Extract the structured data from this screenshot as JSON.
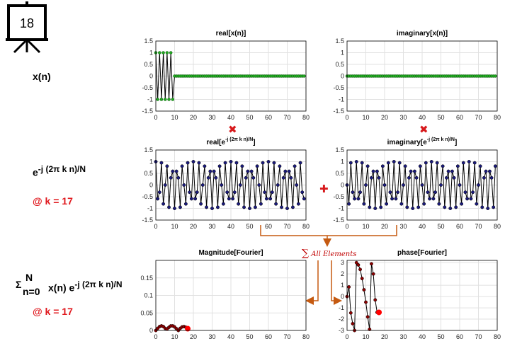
{
  "slide_number": "18",
  "row_labels": {
    "xn": "x(n)",
    "kernel_base": "e",
    "kernel_exp": "-j (2π k n)/N",
    "kernel_k": "@ k = 17",
    "sum_sigma": "Σ",
    "sum_top": "N",
    "sum_bottom": "n=0",
    "sum_expr": "x(n) e",
    "sum_exp": "-j (2π k n)/N",
    "sum_k": "@ k = 17"
  },
  "operators": {
    "multiply_glyph": "✖",
    "plus_glyph": "✚",
    "all_elements_sigma": "∑",
    "all_elements_text": "All Elements"
  },
  "colors": {
    "green_marker": "#22aa22",
    "blue_marker": "#1a1a7a",
    "dark_red_marker": "#8b0000",
    "highlight_red": "#ff0000",
    "operator_red": "#d7191c",
    "arrow_orange": "#c55a11",
    "line": "#000000",
    "grid": "#e1e1e1"
  },
  "chart_data": [
    {
      "id": "real-xn",
      "type": "line",
      "title": "real[x(n)]",
      "title_base": "real[x(n)]",
      "title_sup": "",
      "title_tail": "",
      "xlim": [
        0,
        80
      ],
      "ylim": [
        -1.5,
        1.5
      ],
      "xticks": [
        0,
        10,
        20,
        30,
        40,
        50,
        60,
        70,
        80
      ],
      "yticks": [
        1.5,
        1,
        0.5,
        0,
        -0.5,
        -1,
        -1.5
      ],
      "grid": true,
      "marker_color": "#22aa22",
      "x": [
        0,
        1,
        2,
        3,
        4,
        5,
        6,
        7,
        8,
        9,
        10,
        11,
        12,
        13,
        14,
        15,
        16,
        17,
        18,
        19,
        20,
        21,
        22,
        23,
        24,
        25,
        26,
        27,
        28,
        29,
        30,
        31,
        32,
        33,
        34,
        35,
        36,
        37,
        38,
        39,
        40,
        41,
        42,
        43,
        44,
        45,
        46,
        47,
        48,
        49,
        50,
        51,
        52,
        53,
        54,
        55,
        56,
        57,
        58,
        59,
        60,
        61,
        62,
        63,
        64,
        65,
        66,
        67,
        68,
        69,
        70,
        71,
        72,
        73,
        74,
        75,
        76,
        77,
        78,
        79
      ],
      "y": [
        1,
        -1,
        1,
        -1,
        1,
        -1,
        1,
        -1,
        1,
        -1,
        0,
        0,
        0,
        0,
        0,
        0,
        0,
        0,
        0,
        0,
        0,
        0,
        0,
        0,
        0,
        0,
        0,
        0,
        0,
        0,
        0,
        0,
        0,
        0,
        0,
        0,
        0,
        0,
        0,
        0,
        0,
        0,
        0,
        0,
        0,
        0,
        0,
        0,
        0,
        0,
        0,
        0,
        0,
        0,
        0,
        0,
        0,
        0,
        0,
        0,
        0,
        0,
        0,
        0,
        0,
        0,
        0,
        0,
        0,
        0,
        0,
        0,
        0,
        0,
        0,
        0,
        0,
        0,
        0,
        0
      ]
    },
    {
      "id": "imag-xn",
      "type": "line",
      "title": "imaginary[x(n)]",
      "title_base": "imaginary[x(n)]",
      "title_sup": "",
      "title_tail": "",
      "xlim": [
        0,
        80
      ],
      "ylim": [
        -1.5,
        1.5
      ],
      "xticks": [
        0,
        10,
        20,
        30,
        40,
        50,
        60,
        70,
        80
      ],
      "yticks": [
        1.5,
        1,
        0.5,
        0,
        -0.5,
        -1,
        -1.5
      ],
      "grid": true,
      "marker_color": "#22aa22",
      "x": [
        0,
        1,
        2,
        3,
        4,
        5,
        6,
        7,
        8,
        9,
        10,
        11,
        12,
        13,
        14,
        15,
        16,
        17,
        18,
        19,
        20,
        21,
        22,
        23,
        24,
        25,
        26,
        27,
        28,
        29,
        30,
        31,
        32,
        33,
        34,
        35,
        36,
        37,
        38,
        39,
        40,
        41,
        42,
        43,
        44,
        45,
        46,
        47,
        48,
        49,
        50,
        51,
        52,
        53,
        54,
        55,
        56,
        57,
        58,
        59,
        60,
        61,
        62,
        63,
        64,
        65,
        66,
        67,
        68,
        69,
        70,
        71,
        72,
        73,
        74,
        75,
        76,
        77,
        78,
        79
      ],
      "y": [
        0,
        0,
        0,
        0,
        0,
        0,
        0,
        0,
        0,
        0,
        0,
        0,
        0,
        0,
        0,
        0,
        0,
        0,
        0,
        0,
        0,
        0,
        0,
        0,
        0,
        0,
        0,
        0,
        0,
        0,
        0,
        0,
        0,
        0,
        0,
        0,
        0,
        0,
        0,
        0,
        0,
        0,
        0,
        0,
        0,
        0,
        0,
        0,
        0,
        0,
        0,
        0,
        0,
        0,
        0,
        0,
        0,
        0,
        0,
        0,
        0,
        0,
        0,
        0,
        0,
        0,
        0,
        0,
        0,
        0,
        0,
        0,
        0,
        0,
        0,
        0,
        0,
        0,
        0,
        0
      ]
    },
    {
      "id": "real-kernel",
      "type": "line",
      "title": "real[e^-j (2π k n)/N]",
      "title_base": "real[e",
      "title_sup": "-j (2π k n)/N",
      "title_tail": "]",
      "xlim": [
        0,
        80
      ],
      "ylim": [
        -1.5,
        1.5
      ],
      "xticks": [
        0,
        10,
        20,
        30,
        40,
        50,
        60,
        70,
        80
      ],
      "yticks": [
        1.5,
        1,
        0.5,
        0,
        -0.5,
        -1,
        -1.5
      ],
      "grid": true,
      "marker_color": "#1a1a7a",
      "x": [
        0,
        1,
        2,
        3,
        4,
        5,
        6,
        7,
        8,
        9,
        10,
        11,
        12,
        13,
        14,
        15,
        16,
        17,
        18,
        19,
        20,
        21,
        22,
        23,
        24,
        25,
        26,
        27,
        28,
        29,
        30,
        31,
        32,
        33,
        34,
        35,
        36,
        37,
        38,
        39,
        40,
        41,
        42,
        43,
        44,
        45,
        46,
        47,
        48,
        49,
        50,
        51,
        52,
        53,
        54,
        55,
        56,
        57,
        58,
        59,
        60,
        61,
        62,
        63,
        64,
        65,
        66,
        67,
        68,
        69,
        70,
        71,
        72,
        73,
        74,
        75,
        76,
        77,
        78,
        79
      ],
      "y": [
        1.0,
        -0.588,
        -0.309,
        0.951,
        -0.809,
        0.0,
        0.809,
        -0.951,
        0.309,
        0.588,
        -1.0,
        0.588,
        0.309,
        -0.951,
        0.809,
        0.0,
        -0.809,
        0.951,
        -0.309,
        -0.588,
        1.0,
        -0.588,
        -0.309,
        0.951,
        -0.809,
        0.0,
        0.809,
        -0.951,
        0.309,
        0.588,
        -1.0,
        0.588,
        0.309,
        -0.951,
        0.809,
        0.0,
        -0.809,
        0.951,
        -0.309,
        -0.588,
        1.0,
        -0.588,
        -0.309,
        0.951,
        -0.809,
        0.0,
        0.809,
        -0.951,
        0.309,
        0.588,
        -1.0,
        0.588,
        0.309,
        -0.951,
        0.809,
        0.0,
        -0.809,
        0.951,
        -0.309,
        -0.588,
        1.0,
        -0.588,
        -0.309,
        0.951,
        -0.809,
        0.0,
        0.809,
        -0.951,
        0.309,
        0.588,
        -1.0,
        0.588,
        0.309,
        -0.951,
        0.809,
        0.0,
        -0.809,
        0.951,
        -0.309,
        -0.588
      ]
    },
    {
      "id": "imag-kernel",
      "type": "line",
      "title": "imaginary[e^-j (2π k n)/N]",
      "title_base": "imaginary[e",
      "title_sup": "-j (2π k n)/N",
      "title_tail": "]",
      "xlim": [
        0,
        80
      ],
      "ylim": [
        -1.5,
        1.5
      ],
      "xticks": [
        0,
        10,
        20,
        30,
        40,
        50,
        60,
        70,
        80
      ],
      "yticks": [
        1.5,
        1,
        0.5,
        0,
        -0.5,
        -1,
        -1.5
      ],
      "grid": true,
      "marker_color": "#1a1a7a",
      "x": [
        0,
        1,
        2,
        3,
        4,
        5,
        6,
        7,
        8,
        9,
        10,
        11,
        12,
        13,
        14,
        15,
        16,
        17,
        18,
        19,
        20,
        21,
        22,
        23,
        24,
        25,
        26,
        27,
        28,
        29,
        30,
        31,
        32,
        33,
        34,
        35,
        36,
        37,
        38,
        39,
        40,
        41,
        42,
        43,
        44,
        45,
        46,
        47,
        48,
        49,
        50,
        51,
        52,
        53,
        54,
        55,
        56,
        57,
        58,
        59,
        60,
        61,
        62,
        63,
        64,
        65,
        66,
        67,
        68,
        69,
        70,
        71,
        72,
        73,
        74,
        75,
        76,
        77,
        78,
        79
      ],
      "y": [
        0.0,
        -0.809,
        0.951,
        -0.309,
        -0.588,
        1.0,
        -0.588,
        -0.309,
        0.951,
        -0.809,
        0.0,
        0.809,
        -0.951,
        0.309,
        0.588,
        -1.0,
        0.588,
        0.309,
        -0.951,
        0.809,
        0.0,
        -0.809,
        0.951,
        -0.309,
        -0.588,
        1.0,
        -0.588,
        -0.309,
        0.951,
        -0.809,
        0.0,
        0.809,
        -0.951,
        0.309,
        0.588,
        -1.0,
        0.588,
        0.309,
        -0.951,
        0.809,
        0.0,
        -0.809,
        0.951,
        -0.309,
        -0.588,
        1.0,
        -0.588,
        -0.309,
        0.951,
        -0.809,
        0.0,
        0.809,
        -0.951,
        0.309,
        0.588,
        -1.0,
        0.588,
        0.309,
        -0.951,
        0.809,
        0.0,
        -0.809,
        0.951,
        -0.309,
        -0.588,
        1.0,
        -0.588,
        -0.309,
        0.951,
        -0.809,
        0.0,
        0.809,
        -0.951,
        0.309,
        0.588,
        -1.0,
        0.588,
        0.309,
        -0.951,
        0.809
      ]
    },
    {
      "id": "magnitude",
      "type": "line",
      "title": "Magnitude[Fourier]",
      "title_base": "Magnitude[Fourier]",
      "title_sup": "",
      "title_tail": "",
      "xlim": [
        0,
        80
      ],
      "ylim": [
        0,
        0.2
      ],
      "xticks": [
        0,
        10,
        20,
        30,
        40,
        50,
        60,
        70,
        80
      ],
      "yticks": [
        0.15,
        0.1,
        0.05,
        0
      ],
      "grid": true,
      "marker_color": "#8b0000",
      "highlight_color": "#ff0000",
      "x": [
        0,
        1,
        2,
        3,
        4,
        5,
        6,
        7,
        8,
        9,
        10,
        11,
        12,
        13,
        14,
        15,
        16,
        17
      ],
      "y": [
        0.0,
        0.006,
        0.011,
        0.013,
        0.011,
        0.006,
        0.004,
        0.009,
        0.013,
        0.013,
        0.01,
        0.005,
        0.0,
        0.006,
        0.01,
        0.011,
        0.009,
        0.005
      ],
      "highlight": {
        "x": 17,
        "y": 0.005
      }
    },
    {
      "id": "phase",
      "type": "line",
      "title": "phase[Fourier]",
      "title_base": "phase[Fourier]",
      "title_sup": "",
      "title_tail": "",
      "xlim": [
        0,
        80
      ],
      "ylim": [
        -3,
        3.2
      ],
      "xticks": [
        0,
        10,
        20,
        30,
        40,
        50,
        60,
        70,
        80
      ],
      "yticks": [
        3,
        2,
        1,
        0,
        -1,
        -2,
        -3
      ],
      "grid": true,
      "marker_color": "#8b0000",
      "highlight_color": "#ff0000",
      "x": [
        0,
        1,
        2,
        3,
        4,
        5,
        6,
        7,
        8,
        9,
        10,
        11,
        12,
        13,
        14,
        15,
        16,
        17
      ],
      "y": [
        0.0,
        0.85,
        -1.45,
        -2.4,
        -3.0,
        3.0,
        2.8,
        2.4,
        1.6,
        0.6,
        -0.5,
        -1.8,
        -2.9,
        2.9,
        2.0,
        -0.3,
        -1.4,
        -1.4
      ],
      "highlight": {
        "x": 17,
        "y": -1.4
      }
    }
  ]
}
